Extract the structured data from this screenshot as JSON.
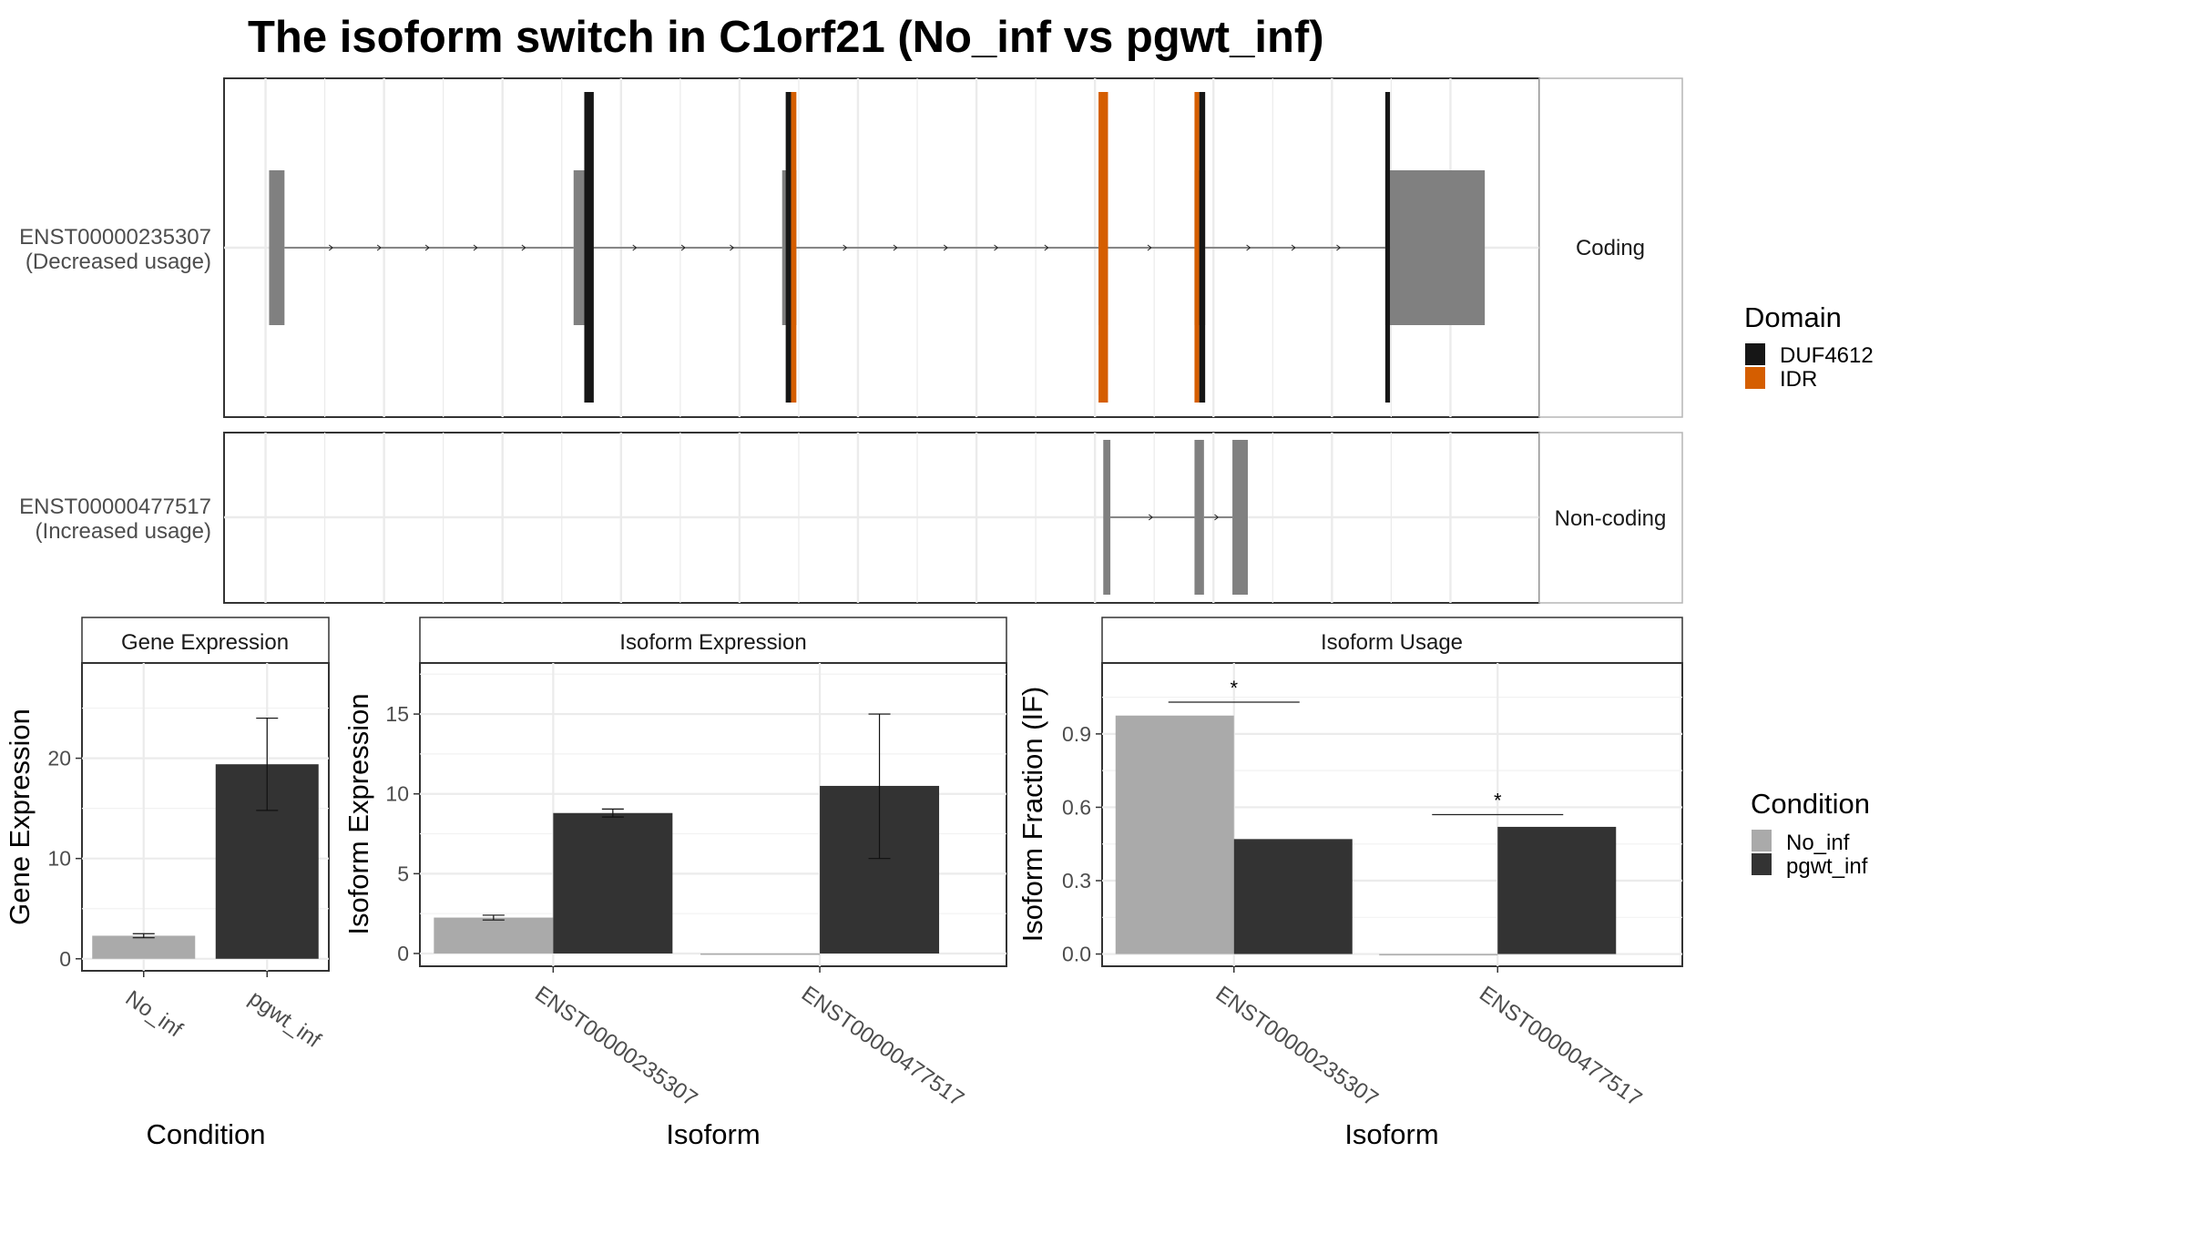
{
  "title": "The isoform switch in C1orf21 (No_inf vs pgwt_inf)",
  "colors": {
    "no_inf": "#aaaaaa",
    "pgwt_inf": "#333333",
    "duf4612": "#161616",
    "idr": "#d55e00",
    "exon": "#808080"
  },
  "transcripts": {
    "coding": {
      "id": "ENST00000235307",
      "usage": "(Decreased usage)",
      "strip": "Coding",
      "exons": [
        [
          0.3,
          1.6
        ],
        [
          26.0,
          27.2
        ],
        [
          43.6,
          44.8
        ],
        [
          70.3,
          71.1
        ],
        [
          78.4,
          79.3
        ],
        [
          94.5,
          94.9
        ],
        [
          94.9,
          102.9
        ]
      ],
      "domains": [
        {
          "name": "DUF4612",
          "from": 26.9,
          "to": 27.7
        },
        {
          "name": "DUF4612",
          "from": 43.9,
          "to": 44.35
        },
        {
          "name": "IDR",
          "from": 44.35,
          "to": 44.8
        },
        {
          "name": "IDR",
          "from": 70.3,
          "to": 71.1
        },
        {
          "name": "IDR",
          "from": 78.4,
          "to": 78.8
        },
        {
          "name": "DUF4612",
          "from": 78.8,
          "to": 79.3
        },
        {
          "name": "DUF4612",
          "from": 94.5,
          "to": 94.9
        }
      ]
    },
    "noncoding": {
      "id": "ENST00000477517",
      "usage": "(Increased usage)",
      "strip": "Non-coding",
      "exons": [
        [
          70.7,
          71.3
        ],
        [
          78.4,
          79.2
        ],
        [
          81.6,
          82.9
        ]
      ]
    }
  },
  "domain_legend": {
    "title": "Domain",
    "items": [
      {
        "label": "DUF4612",
        "color": "#161616"
      },
      {
        "label": "IDR",
        "color": "#d55e00"
      }
    ]
  },
  "condition_legend": {
    "title": "Condition",
    "items": [
      {
        "label": "No_inf",
        "color": "#aaaaaa"
      },
      {
        "label": "pgwt_inf",
        "color": "#333333"
      }
    ]
  },
  "chart_data": [
    {
      "type": "bar",
      "title": "Gene Expression",
      "xlabel": "Condition",
      "ylabel": "Gene Expression",
      "categories": [
        "No_inf",
        "pgwt_inf"
      ],
      "values": [
        2.3,
        19.4
      ],
      "error_low": [
        2.1,
        14.8
      ],
      "error_high": [
        2.5,
        24.0
      ],
      "ylim": [
        -1.2,
        29.5
      ],
      "yticks": [
        0,
        10,
        20
      ]
    },
    {
      "type": "bar",
      "title": "Isoform Expression",
      "xlabel": "Isoform",
      "ylabel": "Isoform Expression",
      "categories": [
        "ENST00000235307",
        "ENST00000477517"
      ],
      "series": [
        {
          "name": "No_inf",
          "values": [
            2.25,
            0.0
          ],
          "error_low": [
            2.1,
            0.0
          ],
          "error_high": [
            2.4,
            0.0
          ]
        },
        {
          "name": "pgwt_inf",
          "values": [
            8.8,
            10.5
          ],
          "error_low": [
            8.55,
            5.95
          ],
          "error_high": [
            9.05,
            15.0
          ]
        }
      ],
      "ylim": [
        -0.8,
        18.2
      ],
      "yticks": [
        0,
        5,
        10,
        15
      ]
    },
    {
      "type": "bar",
      "title": "Isoform Usage",
      "xlabel": "Isoform",
      "ylabel": "Isoform Fraction (IF)",
      "categories": [
        "ENST00000235307",
        "ENST00000477517"
      ],
      "series": [
        {
          "name": "No_inf",
          "values": [
            0.975,
            0.0
          ]
        },
        {
          "name": "pgwt_inf",
          "values": [
            0.47,
            0.52
          ]
        }
      ],
      "significance": [
        {
          "category": "ENST00000235307",
          "label": "*",
          "y": 1.03
        },
        {
          "category": "ENST00000477517",
          "label": "*",
          "y": 0.57
        }
      ],
      "ylim": [
        -0.05,
        1.19
      ],
      "yticks": [
        "0.0",
        "0.3",
        "0.6",
        "0.9"
      ]
    }
  ]
}
